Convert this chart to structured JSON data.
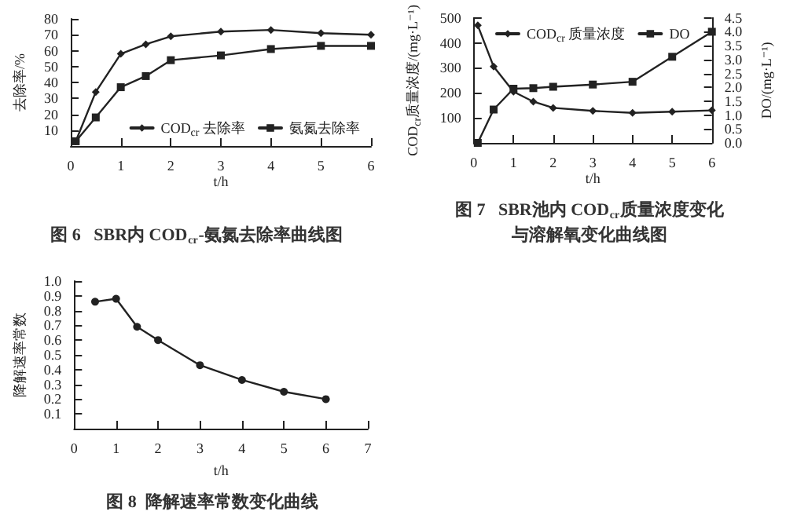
{
  "chart_data": [
    {
      "type": "line",
      "title": "图 6   SBR内 COD$_{cr}$-氨氮去除率曲线图",
      "xlabel": "t/h",
      "ylabel": "去除率/%",
      "xlim": [
        0,
        6
      ],
      "xticks": [
        0,
        1,
        2,
        3,
        4,
        5,
        6
      ],
      "ylim": [
        0,
        80
      ],
      "yticks": [
        10,
        20,
        30,
        40,
        50,
        60,
        70,
        80
      ],
      "legend": "right",
      "grid": false,
      "line_style": "solid",
      "series": [
        {
          "name": "COD$_{cr}$ 去除率",
          "color": "#222222",
          "marker": "diamond",
          "x": [
            0.1,
            0.5,
            1,
            1.5,
            2,
            3,
            4,
            5,
            6
          ],
          "values": [
            3,
            34,
            58,
            64,
            69,
            72,
            73,
            71,
            70
          ]
        },
        {
          "name": "氨氮去除率",
          "color": "#222222",
          "marker": "square",
          "x": [
            0.1,
            0.5,
            1,
            1.5,
            2,
            3,
            4,
            5,
            6
          ],
          "values": [
            3,
            18,
            37,
            44,
            54,
            57,
            61,
            63,
            63
          ]
        }
      ]
    },
    {
      "type": "line",
      "title": "图 7   SBR池内 COD$_{cr}$质量浓度变化与溶解氧变化曲线图",
      "xlabel": "t/h",
      "ylabel": "COD$_{cr}$质量浓度/(mg·L⁻¹)",
      "y2label": "DO/(mg·L⁻¹)",
      "xlim": [
        0,
        6
      ],
      "xticks": [
        0,
        1,
        2,
        3,
        4,
        5,
        6
      ],
      "ylim": [
        0,
        500
      ],
      "yticks": [
        100,
        200,
        300,
        400,
        500
      ],
      "y2lim": [
        0,
        4.5
      ],
      "y2ticks": [
        {
          "value": 0,
          "label": "0.0"
        },
        0.5,
        {
          "value": 1,
          "label": "1.0"
        },
        1.5,
        {
          "value": 2,
          "label": "2.0"
        },
        2.5,
        {
          "value": 3,
          "label": "3.0"
        },
        3.5,
        {
          "value": 4,
          "label": "4.0"
        },
        4.5
      ],
      "legend": "top",
      "grid": false,
      "line_style": "solid",
      "series": [
        {
          "name": "COD$_{cr}$ 质量浓度",
          "color": "#222222",
          "marker": "diamond",
          "x": [
            0.1,
            0.5,
            1,
            1.5,
            2,
            3,
            4,
            5,
            6
          ],
          "values": [
            470,
            305,
            205,
            165,
            140,
            128,
            120,
            125,
            130
          ]
        },
        {
          "name": "DO",
          "color": "#222222",
          "marker": "square",
          "axis": "y2",
          "x": [
            0.1,
            0.5,
            1,
            1.5,
            2,
            3,
            4,
            5,
            6
          ],
          "values": [
            0.0,
            1.2,
            1.95,
            1.97,
            2.02,
            2.1,
            2.2,
            3.1,
            4.0
          ]
        }
      ]
    },
    {
      "type": "line",
      "title": "图 8  降解速率常数变化曲线",
      "xlabel": "t/h",
      "ylabel": "降解速率常数",
      "xlim": [
        0,
        7
      ],
      "xticks": [
        0,
        1,
        2,
        3,
        4,
        5,
        6,
        7
      ],
      "ylim": [
        0,
        1
      ],
      "yticks": [
        0.1,
        0.2,
        0.3,
        0.4,
        0.5,
        0.6,
        0.7,
        0.8,
        0.9,
        {
          "value": 1,
          "label": "1.0"
        }
      ],
      "legend": false,
      "grid": false,
      "line_style": "solid",
      "marker": "circle",
      "series": [
        {
          "color": "#222222",
          "x": [
            0.5,
            1,
            1.5,
            2,
            3,
            4,
            5,
            6
          ],
          "values": [
            0.86,
            0.88,
            0.69,
            0.6,
            0.43,
            0.33,
            0.25,
            0.2
          ]
        }
      ]
    }
  ]
}
